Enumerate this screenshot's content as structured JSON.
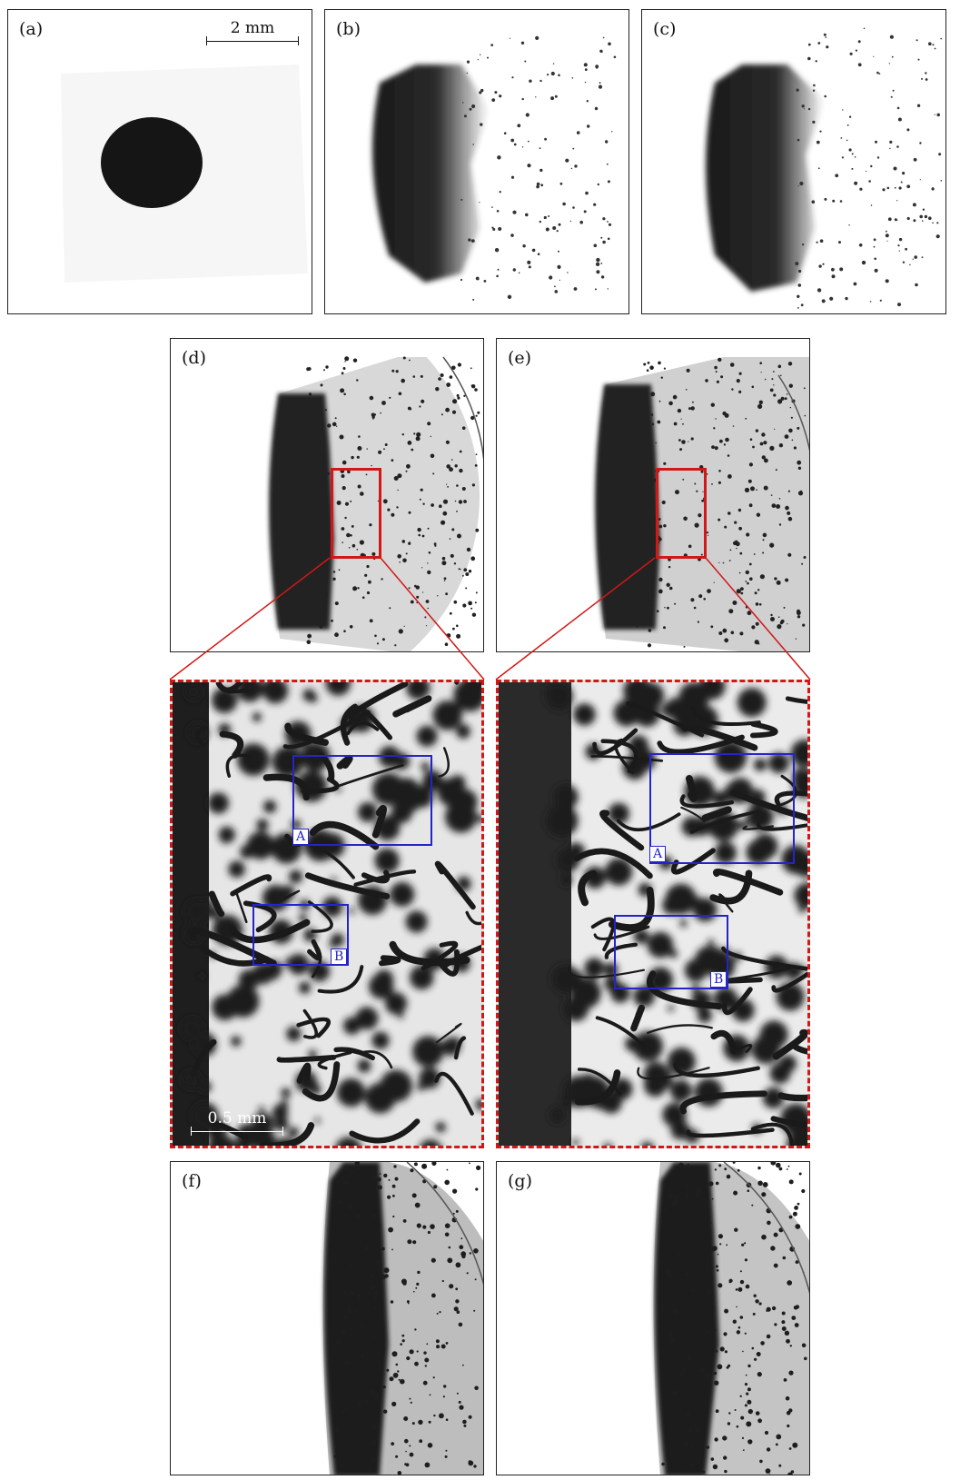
{
  "panels": {
    "a": {
      "label": "(a)",
      "scale_text": "2 mm"
    },
    "b": {
      "label": "(b)"
    },
    "c": {
      "label": "(c)"
    },
    "d": {
      "label": "(d)"
    },
    "e": {
      "label": "(e)"
    },
    "f": {
      "label": "(f)"
    },
    "g": {
      "label": "(g)"
    }
  },
  "zoom_left": {
    "roi_a": "A",
    "roi_b": "B",
    "scale_text": "0.5 mm"
  },
  "zoom_right": {
    "roi_a": "A",
    "roi_b": "B"
  },
  "colors": {
    "zoom_box": "#d01818",
    "roi_box": "#2424c8",
    "ink": "#111111"
  }
}
